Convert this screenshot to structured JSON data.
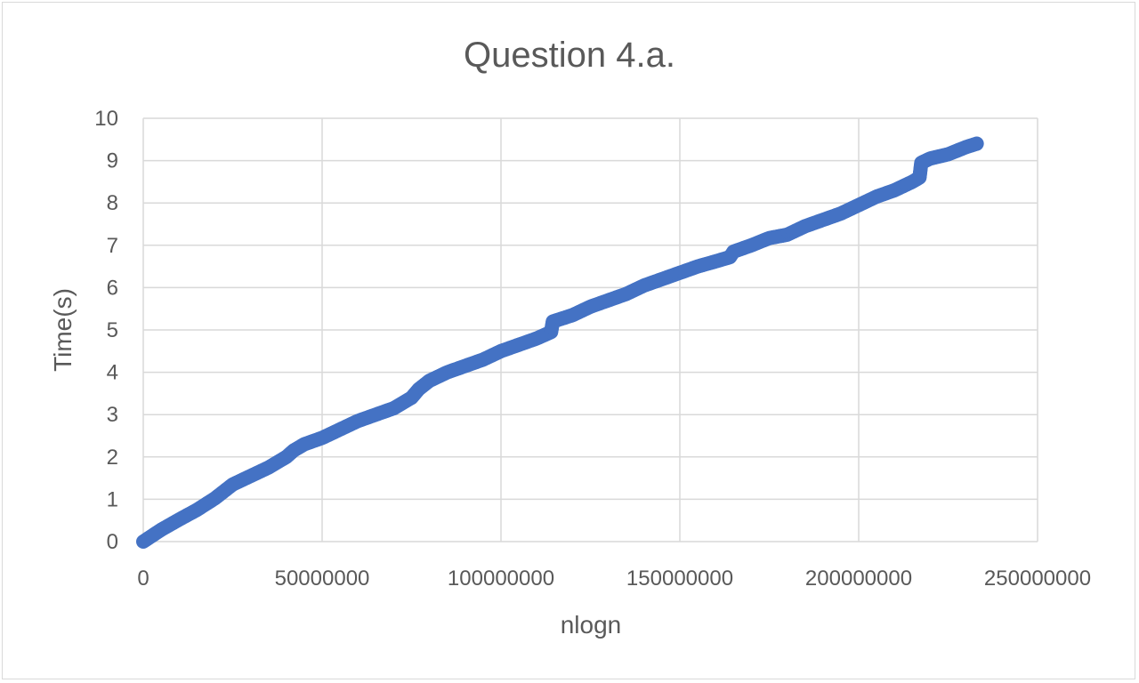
{
  "chart_data": {
    "type": "scatter",
    "title": "Question 4.a.",
    "xlabel": "nlogn",
    "ylabel": "Time(s)",
    "xlim": [
      0,
      250000000
    ],
    "ylim": [
      0,
      10
    ],
    "x_ticks": [
      "0",
      "50000000",
      "100000000",
      "150000000",
      "200000000",
      "250000000"
    ],
    "y_ticks": [
      "0",
      "1",
      "2",
      "3",
      "4",
      "5",
      "6",
      "7",
      "8",
      "9",
      "10"
    ],
    "grid": true,
    "legend": "none",
    "marker_color": "#4472c4",
    "series": [
      {
        "points": [
          [
            0,
            0.0
          ],
          [
            5000000,
            0.28
          ],
          [
            10000000,
            0.52
          ],
          [
            15000000,
            0.75
          ],
          [
            20000000,
            1.02
          ],
          [
            25000000,
            1.35
          ],
          [
            30000000,
            1.55
          ],
          [
            35000000,
            1.75
          ],
          [
            40000000,
            2.0
          ],
          [
            42000000,
            2.15
          ],
          [
            45000000,
            2.3
          ],
          [
            50000000,
            2.45
          ],
          [
            55000000,
            2.65
          ],
          [
            60000000,
            2.85
          ],
          [
            65000000,
            3.0
          ],
          [
            70000000,
            3.15
          ],
          [
            75000000,
            3.4
          ],
          [
            77000000,
            3.6
          ],
          [
            80000000,
            3.8
          ],
          [
            85000000,
            4.0
          ],
          [
            90000000,
            4.15
          ],
          [
            95000000,
            4.3
          ],
          [
            100000000,
            4.5
          ],
          [
            105000000,
            4.65
          ],
          [
            110000000,
            4.8
          ],
          [
            114000000,
            4.95
          ],
          [
            114500000,
            5.2
          ],
          [
            120000000,
            5.35
          ],
          [
            125000000,
            5.55
          ],
          [
            130000000,
            5.7
          ],
          [
            135000000,
            5.85
          ],
          [
            140000000,
            6.05
          ],
          [
            145000000,
            6.2
          ],
          [
            150000000,
            6.35
          ],
          [
            155000000,
            6.5
          ],
          [
            160000000,
            6.62
          ],
          [
            164000000,
            6.72
          ],
          [
            165000000,
            6.85
          ],
          [
            170000000,
            7.0
          ],
          [
            175000000,
            7.17
          ],
          [
            180000000,
            7.25
          ],
          [
            185000000,
            7.45
          ],
          [
            190000000,
            7.6
          ],
          [
            195000000,
            7.75
          ],
          [
            200000000,
            7.95
          ],
          [
            205000000,
            8.15
          ],
          [
            210000000,
            8.3
          ],
          [
            215000000,
            8.5
          ],
          [
            217000000,
            8.6
          ],
          [
            217500000,
            8.95
          ],
          [
            220000000,
            9.05
          ],
          [
            225000000,
            9.15
          ],
          [
            230000000,
            9.32
          ],
          [
            233000000,
            9.4
          ]
        ]
      }
    ]
  }
}
